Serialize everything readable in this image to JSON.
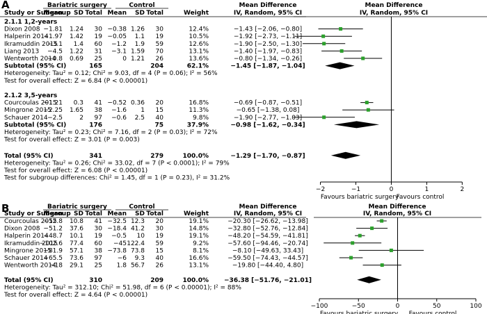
{
  "chart_data": [
    {
      "type": "forest",
      "panel": "A",
      "headers": {
        "study": "Study or Subgroup",
        "group1": "Bariatric surgery",
        "group2": "Control",
        "mean": "Mean",
        "sd": "SD",
        "total": "Total",
        "weight": "Weight",
        "md": "Mean Difference",
        "method": "IV, Random, 95% CI",
        "plot_md": "Mean Difference",
        "plot_method": "IV, Random, 95% CI"
      },
      "xlim": [
        -2.6,
        2.7
      ],
      "ticks": [
        -2,
        -1,
        0,
        1,
        2
      ],
      "tick_labels": [
        "−2",
        "−1",
        "0",
        "1",
        "2"
      ],
      "axis_label_left": "Favours bariatric surgery",
      "axis_label_right": "Favours control",
      "subgroups": [
        {
          "title": "2.1.1 1,2-years",
          "studies": [
            {
              "name": "Dixon 2008",
              "m1": "−1.81",
              "sd1": "1.24",
              "n1": "30",
              "m2": "−0.38",
              "sd2": "1.26",
              "n2": "30",
              "weight": "12.4%",
              "ci_text": "−1.43 [−2.06, −0.80]",
              "md": -1.43,
              "lo": -2.06,
              "hi": -0.8
            },
            {
              "name": "Halperin 2014",
              "m1": "−1.97",
              "sd1": "1.42",
              "n1": "19",
              "m2": "−0.05",
              "sd2": "1.1",
              "n2": "19",
              "weight": "10.5%",
              "ci_text": "−1.92 [−2.73, −1.11]",
              "md": -1.92,
              "lo": -2.73,
              "hi": -1.11
            },
            {
              "name": "Ikramuddin 2015",
              "m1": "−3.1",
              "sd1": "1.4",
              "n1": "60",
              "m2": "−1.2",
              "sd2": "1.9",
              "n2": "59",
              "weight": "12.6%",
              "ci_text": "−1.90 [−2.50, −1.30]",
              "md": -1.9,
              "lo": -2.5,
              "hi": -1.3
            },
            {
              "name": "Liang 2013",
              "m1": "−4.5",
              "sd1": "1.22",
              "n1": "31",
              "m2": "−3.1",
              "sd2": "1.59",
              "n2": "70",
              "weight": "13.1%",
              "ci_text": "−1.40 [−1.97, −0.83]",
              "md": -1.4,
              "lo": -1.97,
              "hi": -0.83
            },
            {
              "name": "Wentworth 2014",
              "m1": "−0.8",
              "sd1": "0.69",
              "n1": "25",
              "m2": "0",
              "sd2": "1.21",
              "n2": "26",
              "weight": "13.6%",
              "ci_text": "−0.80 [−1.34, −0.26]",
              "md": -0.8,
              "lo": -1.34,
              "hi": -0.26
            }
          ],
          "subtotal": {
            "label": "Subtotal (95% CI)",
            "n1": "165",
            "n2": "204",
            "weight": "62.1%",
            "ci_text": "−1.45 [−1.87, −1.04]",
            "md": -1.45,
            "lo": -1.87,
            "hi": -1.04
          },
          "heterogeneity": "Heterogeneity: Tau² = 0.12; Chi² = 9.03, df = 4 (P = 0.06); I² = 56%",
          "overall_effect": "Test for overall effect: Z = 6.84 (P < 0.00001)"
        },
        {
          "title": "2.1.2 3,5-years",
          "studies": [
            {
              "name": "Courcoulas 2015",
              "m1": "−1.21",
              "sd1": "0.3",
              "n1": "41",
              "m2": "−0.52",
              "sd2": "0.36",
              "n2": "20",
              "weight": "16.8%",
              "ci_text": "−0.69 [−0.87, −0.51]",
              "md": -0.69,
              "lo": -0.87,
              "hi": -0.51
            },
            {
              "name": "Mingrone 2015",
              "m1": "−2.25",
              "sd1": "1.65",
              "n1": "38",
              "m2": "−1.6",
              "sd2": "1",
              "n2": "15",
              "weight": "11.3%",
              "ci_text": "−0.65 [−1.38, 0.08]",
              "md": -0.65,
              "lo": -1.38,
              "hi": 0.08
            },
            {
              "name": "Schauer 2014",
              "m1": "−2.5",
              "sd1": "2",
              "n1": "97",
              "m2": "−0.6",
              "sd2": "2.5",
              "n2": "40",
              "weight": "9.8%",
              "ci_text": "−1.90 [−2.77, −1.03]",
              "md": -1.9,
              "lo": -2.77,
              "hi": -1.03
            }
          ],
          "subtotal": {
            "label": "Subtotal (95% CI)",
            "n1": "176",
            "n2": "75",
            "weight": "37.9%",
            "ci_text": "−0.98 [−1.62, −0.34]",
            "md": -0.98,
            "lo": -1.62,
            "hi": -0.34
          },
          "heterogeneity": "Heterogeneity: Tau² = 0.23; Chi² = 7.16, df = 2 (P = 0.03); I² = 72%",
          "overall_effect": "Test for overall effect: Z = 3.01 (P = 0.003)"
        }
      ],
      "total": {
        "label": "Total (95% CI)",
        "n1": "341",
        "n2": "279",
        "weight": "100.0%",
        "ci_text": "−1.29 [−1.70, −0.87]",
        "md": -1.29,
        "lo": -1.7,
        "hi": -0.87
      },
      "footer": [
        "Heterogeneity: Tau² = 0.26; Chi² = 33.02, df = 7 (P < 0.0001); I² = 79%",
        "Test for overall effect: Z = 6.08 (P < 0.00001)",
        "Test for subgroup differences: Chi² = 1.45, df = 1 (P = 0.23), I² = 31.2%"
      ]
    },
    {
      "type": "forest",
      "panel": "B",
      "headers": {
        "study": "Study or Subgroup",
        "group1": "Bariatric surgery",
        "group2": "Control",
        "mean": "Mean",
        "sd": "SD",
        "total": "Total",
        "weight": "Weight",
        "md": "Mean Difference",
        "method": "IV, Random, 95% CI",
        "plot_md": "Mean Difference",
        "plot_method": "IV, Random, 95% CI"
      },
      "xlim": [
        -100,
        100
      ],
      "ticks": [
        -100,
        -50,
        0,
        50,
        100
      ],
      "tick_labels": [
        "−100",
        "−50",
        "0",
        "50",
        "100"
      ],
      "axis_label_left": "Favours bariatric surgery",
      "axis_label_right": "Favours control",
      "studies": [
        {
          "name": "Courcoulas 2015",
          "m1": "−52.8",
          "sd1": "10.8",
          "n1": "41",
          "m2": "−32.5",
          "sd2": "12.3",
          "n2": "20",
          "weight": "19.1%",
          "ci_text": "−20.30 [−26.62, −13.98]",
          "md": -20.3,
          "lo": -26.62,
          "hi": -13.98
        },
        {
          "name": "Dixon 2008",
          "m1": "−51.2",
          "sd1": "37.6",
          "n1": "30",
          "m2": "−18.4",
          "sd2": "41.2",
          "n2": "30",
          "weight": "14.8%",
          "ci_text": "−32.80 [−52.76, −12.84]",
          "md": -32.8,
          "lo": -52.76,
          "hi": -12.84
        },
        {
          "name": "Halperin 2014",
          "m1": "−48.7",
          "sd1": "10.1",
          "n1": "19",
          "m2": "−0.5",
          "sd2": "10",
          "n2": "19",
          "weight": "19.1%",
          "ci_text": "−48.20 [−54.59, −41.81]",
          "md": -48.2,
          "lo": -54.59,
          "hi": -41.81
        },
        {
          "name": "Ikramuddin 2015",
          "m1": "−102.6",
          "sd1": "77.4",
          "n1": "60",
          "m2": "−45",
          "sd2": "122.4",
          "n2": "59",
          "weight": "9.2%",
          "ci_text": "−57.60 [−94.46, −20.74]",
          "md": -57.6,
          "lo": -94.46,
          "hi": -20.74
        },
        {
          "name": "Mingrone 2015",
          "m1": "−81.9",
          "sd1": "57.1",
          "n1": "38",
          "m2": "−73.8",
          "sd2": "73.8",
          "n2": "15",
          "weight": "8.1%",
          "ci_text": "−8.10 [−49.63, 33.43]",
          "md": -8.1,
          "lo": -49.63,
          "hi": 33.43
        },
        {
          "name": "Schauer 2014",
          "m1": "−65.5",
          "sd1": "73.6",
          "n1": "97",
          "m2": "−6",
          "sd2": "9.3",
          "n2": "40",
          "weight": "16.6%",
          "ci_text": "−59.50 [−74.43, −44.57]",
          "md": -59.5,
          "lo": -74.43,
          "hi": -44.57
        },
        {
          "name": "Wentworth 2014",
          "m1": "−18",
          "sd1": "29.1",
          "n1": "25",
          "m2": "1.8",
          "sd2": "56.7",
          "n2": "26",
          "weight": "13.1%",
          "ci_text": "−19.80 [−44.40, 4.80]",
          "md": -19.8,
          "lo": -44.4,
          "hi": 4.8
        }
      ],
      "total": {
        "label": "Total (95% CI)",
        "n1": "310",
        "n2": "209",
        "weight": "100.0%",
        "ci_text": "−36.38 [−51.76, −21.01]",
        "md": -36.38,
        "lo": -51.76,
        "hi": -21.01
      },
      "footer": [
        "Heterogeneity: Tau² = 312.10; Chi² = 51.98, df = 6 (P < 0.00001); I² = 88%",
        "Test for overall effect: Z = 4.64 (P < 0.00001)"
      ]
    }
  ],
  "colors": {
    "marker": "#2ca02c",
    "diamond": "#000000",
    "rule": "#000000"
  }
}
